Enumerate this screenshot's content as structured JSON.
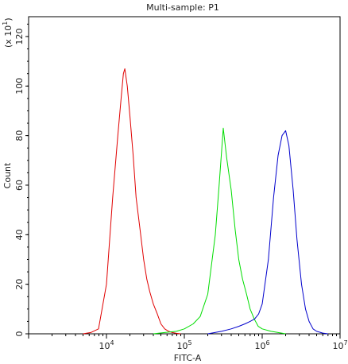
{
  "chart_data": {
    "type": "line",
    "title": "Multi-sample: P1",
    "xlabel": "FITC-A",
    "ylabel": "Count",
    "y_scale_note": "(x 10",
    "y_scale_exp": "1",
    "x_scale": "log",
    "xlim": [
      1000,
      10000000
    ],
    "ylim": [
      0,
      128
    ],
    "x_ticks": [
      {
        "value": 10000,
        "base": "10",
        "exp": "4"
      },
      {
        "value": 100000,
        "base": "10",
        "exp": "5"
      },
      {
        "value": 1000000,
        "base": "10",
        "exp": "6"
      },
      {
        "value": 10000000,
        "base": "10",
        "exp": "7"
      }
    ],
    "y_ticks": [
      0,
      20,
      40,
      60,
      80,
      100,
      120
    ],
    "grid": false,
    "series": [
      {
        "color": "#e00000",
        "x": [
          5000,
          6300,
          7900,
          10000,
          12000,
          14000,
          15500,
          16500,
          17200,
          18500,
          20000,
          22000,
          24000,
          27000,
          30000,
          33000,
          36000,
          40000,
          45000,
          50000,
          56000,
          63000,
          70000,
          79000,
          90000
        ],
        "y": [
          0,
          0.5,
          2,
          20,
          55,
          80,
          96,
          105,
          107,
          100,
          88,
          72,
          55,
          42,
          30,
          22,
          17,
          12,
          8,
          4,
          2,
          1,
          0.5,
          0.2,
          0
        ]
      },
      {
        "color": "#00dd00",
        "x": [
          40000,
          56000,
          79000,
          100000,
          130000,
          160000,
          200000,
          250000,
          280000,
          316000,
          350000,
          400000,
          450000,
          500000,
          560000,
          630000,
          700000,
          790000,
          890000,
          1000000,
          1300000,
          1600000,
          2000000
        ],
        "y": [
          0,
          0.5,
          1,
          2,
          4,
          7,
          16,
          40,
          60,
          83,
          71,
          58,
          42,
          30,
          22,
          16,
          10,
          6,
          3,
          2,
          1,
          0.5,
          0
        ]
      },
      {
        "color": "#0000cc",
        "x": [
          200000,
          300000,
          400000,
          500000,
          600000,
          700000,
          800000,
          900000,
          1000000,
          1200000,
          1400000,
          1600000,
          1800000,
          2000000,
          2200000,
          2500000,
          2800000,
          3200000,
          3600000,
          4000000,
          4500000,
          5000000,
          6000000,
          7000000
        ],
        "y": [
          0,
          1,
          2,
          3,
          4,
          5,
          6,
          8,
          12,
          30,
          55,
          72,
          80,
          82,
          76,
          58,
          38,
          20,
          10,
          5,
          2,
          1,
          0.3,
          0
        ]
      }
    ]
  }
}
